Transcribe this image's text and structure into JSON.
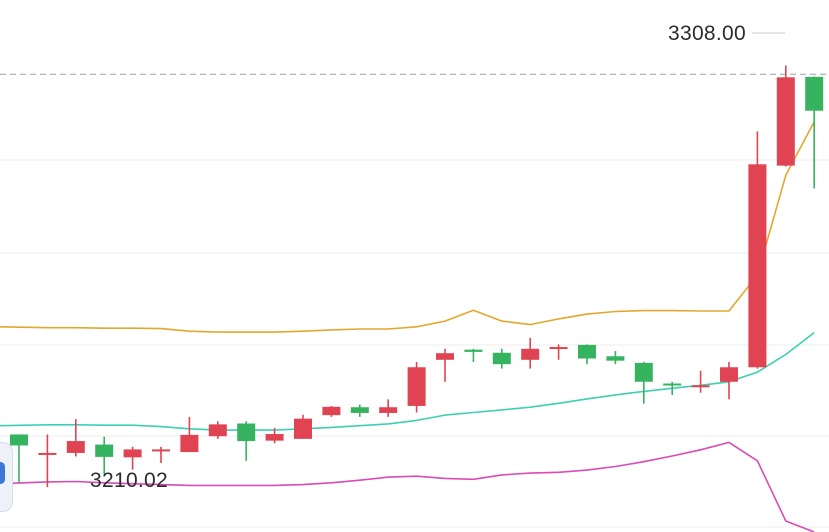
{
  "chart_data": {
    "type": "candlestick",
    "ylim": [
      3203.8,
      3324.9
    ],
    "grid": true,
    "colors": {
      "up": "#e04352",
      "down": "#35b35e",
      "boll_upper": "#e4a72e",
      "boll_middle": "#3ecfb3",
      "boll_lower": "#d94bb6",
      "reference_line": "#9aa0a8",
      "grid": "#eeeeee",
      "label_text": "#2b2b2b"
    },
    "labels": {
      "high": "3308.00",
      "low": "3210.02"
    },
    "reference_price": 3308.0,
    "candles": [
      {
        "open": 3226.0,
        "high": 3226.0,
        "low": 3215.0,
        "close": 3223.5
      },
      {
        "open": 3221.5,
        "high": 3226.0,
        "low": 3214.0,
        "close": 3221.8
      },
      {
        "open": 3221.8,
        "high": 3229.5,
        "low": 3221.0,
        "close": 3224.5
      },
      {
        "open": 3223.7,
        "high": 3225.5,
        "low": 3217.0,
        "close": 3220.9
      },
      {
        "open": 3220.8,
        "high": 3223.2,
        "low": 3218.0,
        "close": 3222.6
      },
      {
        "open": 3222.2,
        "high": 3223.2,
        "low": 3219.5,
        "close": 3222.6
      },
      {
        "open": 3222.0,
        "high": 3230.0,
        "low": 3222.0,
        "close": 3225.9
      },
      {
        "open": 3225.6,
        "high": 3229.0,
        "low": 3225.0,
        "close": 3228.3
      },
      {
        "open": 3228.5,
        "high": 3229.0,
        "low": 3220.0,
        "close": 3224.5
      },
      {
        "open": 3224.6,
        "high": 3227.5,
        "low": 3224.0,
        "close": 3226.1
      },
      {
        "open": 3225.0,
        "high": 3230.5,
        "low": 3225.0,
        "close": 3229.6
      },
      {
        "open": 3230.4,
        "high": 3232.5,
        "low": 3230.0,
        "close": 3232.3
      },
      {
        "open": 3232.2,
        "high": 3232.8,
        "low": 3230.0,
        "close": 3230.9
      },
      {
        "open": 3230.9,
        "high": 3234.0,
        "low": 3230.0,
        "close": 3232.2
      },
      {
        "open": 3232.5,
        "high": 3242.5,
        "low": 3231.0,
        "close": 3241.3
      },
      {
        "open": 3243.0,
        "high": 3245.5,
        "low": 3238.0,
        "close": 3244.5
      },
      {
        "open": 3245.3,
        "high": 3245.5,
        "low": 3242.5,
        "close": 3244.8
      },
      {
        "open": 3244.6,
        "high": 3245.5,
        "low": 3241.0,
        "close": 3242.0
      },
      {
        "open": 3243.0,
        "high": 3248.0,
        "low": 3241.0,
        "close": 3245.5
      },
      {
        "open": 3245.5,
        "high": 3246.5,
        "low": 3243.0,
        "close": 3245.9
      },
      {
        "open": 3246.4,
        "high": 3246.5,
        "low": 3242.0,
        "close": 3243.3
      },
      {
        "open": 3243.8,
        "high": 3245.0,
        "low": 3242.0,
        "close": 3242.8
      },
      {
        "open": 3242.3,
        "high": 3242.5,
        "low": 3233.0,
        "close": 3238.0
      },
      {
        "open": 3237.6,
        "high": 3238.0,
        "low": 3235.0,
        "close": 3237.2
      },
      {
        "open": 3237.1,
        "high": 3240.5,
        "low": 3235.5,
        "close": 3237.2
      },
      {
        "open": 3238.0,
        "high": 3242.5,
        "low": 3234.0,
        "close": 3241.3
      },
      {
        "open": 3241.3,
        "high": 3295.0,
        "low": 3241.0,
        "close": 3287.5
      },
      {
        "open": 3287.2,
        "high": 3310.0,
        "low": 3287.0,
        "close": 3307.3
      },
      {
        "open": 3307.4,
        "high": 3307.5,
        "low": 3282.0,
        "close": 3299.7
      }
    ],
    "boll_upper": [
      3250.5,
      3250.3,
      3250.3,
      3250.2,
      3250.2,
      3250.1,
      3249.5,
      3249.3,
      3249.3,
      3249.3,
      3249.5,
      3249.8,
      3250.0,
      3250.0,
      3250.5,
      3251.8,
      3254.3,
      3251.8,
      3251.0,
      3252.3,
      3253.4,
      3254.0,
      3254.2,
      3254.2,
      3254.1,
      3254.1,
      3262.3,
      3285.0,
      3297.2
    ],
    "boll_middle": [
      3228.0,
      3228.2,
      3228.2,
      3228.1,
      3228.1,
      3227.8,
      3227.3,
      3227.0,
      3227.0,
      3227.0,
      3227.3,
      3227.6,
      3228.0,
      3228.4,
      3229.2,
      3230.4,
      3231.0,
      3231.6,
      3232.2,
      3233.1,
      3234.1,
      3235.0,
      3235.8,
      3236.5,
      3237.2,
      3238.0,
      3240.2,
      3244.2,
      3249.2
    ],
    "boll_lower": [
      3214.8,
      3215.2,
      3215.3,
      3215.0,
      3214.8,
      3214.6,
      3214.4,
      3214.4,
      3214.4,
      3214.4,
      3214.6,
      3215.0,
      3215.6,
      3216.3,
      3216.5,
      3216.0,
      3215.8,
      3216.8,
      3217.2,
      3217.4,
      3217.9,
      3218.7,
      3219.8,
      3221.1,
      3222.5,
      3224.2,
      3220.0,
      3206.3,
      3203.8
    ]
  }
}
